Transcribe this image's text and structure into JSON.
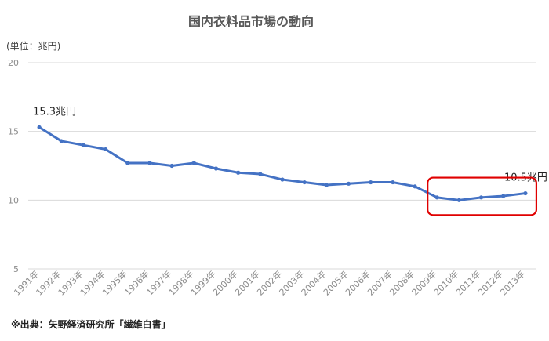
{
  "title": "国内衣料品市場の動向",
  "unit_label": "(単位：兆円)",
  "source": "※出典：矢野経済研究所「繊維白書」",
  "colors": {
    "line": "#4472c4",
    "highlight": "#e00000",
    "grid": "#d9d9d9"
  },
  "chart_data": {
    "type": "line",
    "title": "国内衣料品市場の動向",
    "xlabel": "",
    "ylabel": "",
    "categories": [
      "1991年",
      "1992年",
      "1993年",
      "1994年",
      "1995年",
      "1996年",
      "1997年",
      "1998年",
      "1999年",
      "2000年",
      "2001年",
      "2002年",
      "2003年",
      "2004年",
      "2005年",
      "2006年",
      "2007年",
      "2008年",
      "2009年",
      "2010年",
      "2011年",
      "2012年",
      "2013年"
    ],
    "values": [
      15.3,
      14.3,
      14.0,
      13.7,
      12.7,
      12.7,
      12.5,
      12.7,
      12.3,
      12.0,
      11.9,
      11.5,
      11.3,
      11.1,
      11.2,
      11.3,
      11.3,
      11.0,
      10.2,
      10.0,
      10.2,
      10.3,
      10.5
    ],
    "ylim": [
      5,
      20
    ],
    "yticks": [
      "5",
      "10",
      "15",
      "20"
    ],
    "grid": true,
    "annotations": [
      {
        "index": 0,
        "text": "15.3兆円"
      },
      {
        "index": 22,
        "text": "10.5兆円"
      }
    ],
    "highlight_range": [
      "2009年",
      "2013年"
    ]
  }
}
